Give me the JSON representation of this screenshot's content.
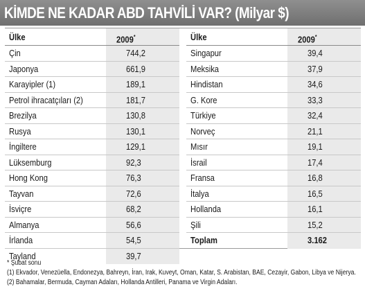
{
  "title": "KİMDE NE KADAR ABD TAHVİLİ VAR? (Milyar $)",
  "table": {
    "headers": {
      "country": "Ülke",
      "year": "2009",
      "year_marker": "*"
    },
    "left_rows": [
      {
        "country": "Çin",
        "value": "744,2"
      },
      {
        "country": "Japonya",
        "value": "661,9"
      },
      {
        "country": "Karayipler (1)",
        "value": "189,1"
      },
      {
        "country": "Petrol ihracatçıları (2)",
        "value": "181,7"
      },
      {
        "country": "Brezilya",
        "value": "130,8"
      },
      {
        "country": "Rusya",
        "value": "130,1"
      },
      {
        "country": "İngiltere",
        "value": "129,1"
      },
      {
        "country": "Lüksemburg",
        "value": "92,3"
      },
      {
        "country": "Hong Kong",
        "value": "76,3"
      },
      {
        "country": "Tayvan",
        "value": "72,6"
      },
      {
        "country": "İsviçre",
        "value": "68,2"
      },
      {
        "country": "Almanya",
        "value": "56,6"
      },
      {
        "country": "İrlanda",
        "value": "54,5"
      },
      {
        "country": "Tayland",
        "value": "39,7"
      }
    ],
    "right_rows": [
      {
        "country": "Singapur",
        "value": "39,4"
      },
      {
        "country": "Meksika",
        "value": "37,9"
      },
      {
        "country": "Hindistan",
        "value": "34,6"
      },
      {
        "country": "G. Kore",
        "value": "33,3"
      },
      {
        "country": "Türkiye",
        "value": "32,4"
      },
      {
        "country": "Norveç",
        "value": "21,1"
      },
      {
        "country": "Mısır",
        "value": "19,1"
      },
      {
        "country": "İsrail",
        "value": "17,4"
      },
      {
        "country": "Fransa",
        "value": "16,8"
      },
      {
        "country": "İtalya",
        "value": "16,5"
      },
      {
        "country": "Hollanda",
        "value": "16,1"
      },
      {
        "country": "Şili",
        "value": "15,2"
      },
      {
        "country": "Toplam",
        "value": "3.162",
        "total": true
      }
    ]
  },
  "notes": [
    "* Şubat sonu",
    "(1) Ekvador, Venezüella, Endonezya, Bahreyn, İran, Irak, Kuveyt, Oman, Katar, S. Arabistan, BAE, Cezayir, Gabon, Libya ve Nijerya.",
    "(2) Bahamalar, Bermuda, Cayman Adaları, Hollanda Antilleri, Panama ve Virgin Adaları."
  ],
  "colors": {
    "title_bar": "#7a7a7a",
    "value_column": "#eaeaea"
  }
}
